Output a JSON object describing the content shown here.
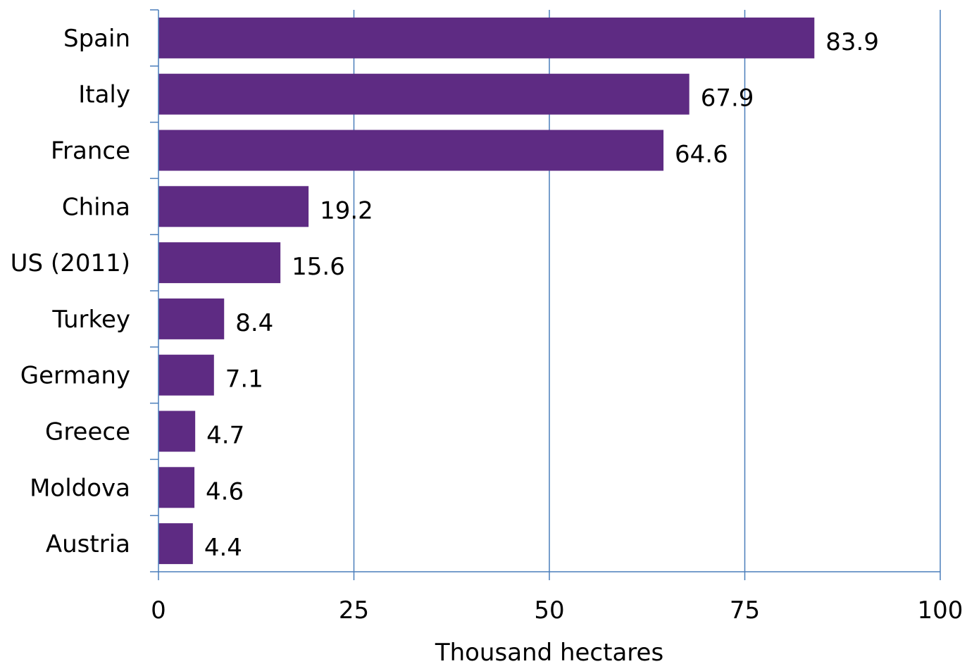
{
  "chart_data": {
    "type": "bar",
    "orientation": "horizontal",
    "categories": [
      "Spain",
      "Italy",
      "France",
      "China",
      "US (2011)",
      "Turkey",
      "Germany",
      "Greece",
      "Moldova",
      "Austria"
    ],
    "values": [
      83.9,
      67.9,
      64.6,
      19.2,
      15.6,
      8.4,
      7.1,
      4.7,
      4.6,
      4.4
    ],
    "value_labels": [
      "83.9",
      "67.9",
      "64.6",
      "19.2",
      "15.6",
      "8.4",
      "7.1",
      "4.7",
      "4.6",
      "4.4"
    ],
    "xlabel": "Thousand hectares",
    "xlim": [
      0,
      100
    ],
    "xticks": [
      0,
      25,
      50,
      75,
      100
    ],
    "xtick_labels": [
      "0",
      "25",
      "50",
      "75",
      "100"
    ],
    "grid": "vertical",
    "legend": "none",
    "colors": {
      "bar": "#5E2B83",
      "grid": "#4A7EBB",
      "axis": "#4A7EBB"
    }
  }
}
